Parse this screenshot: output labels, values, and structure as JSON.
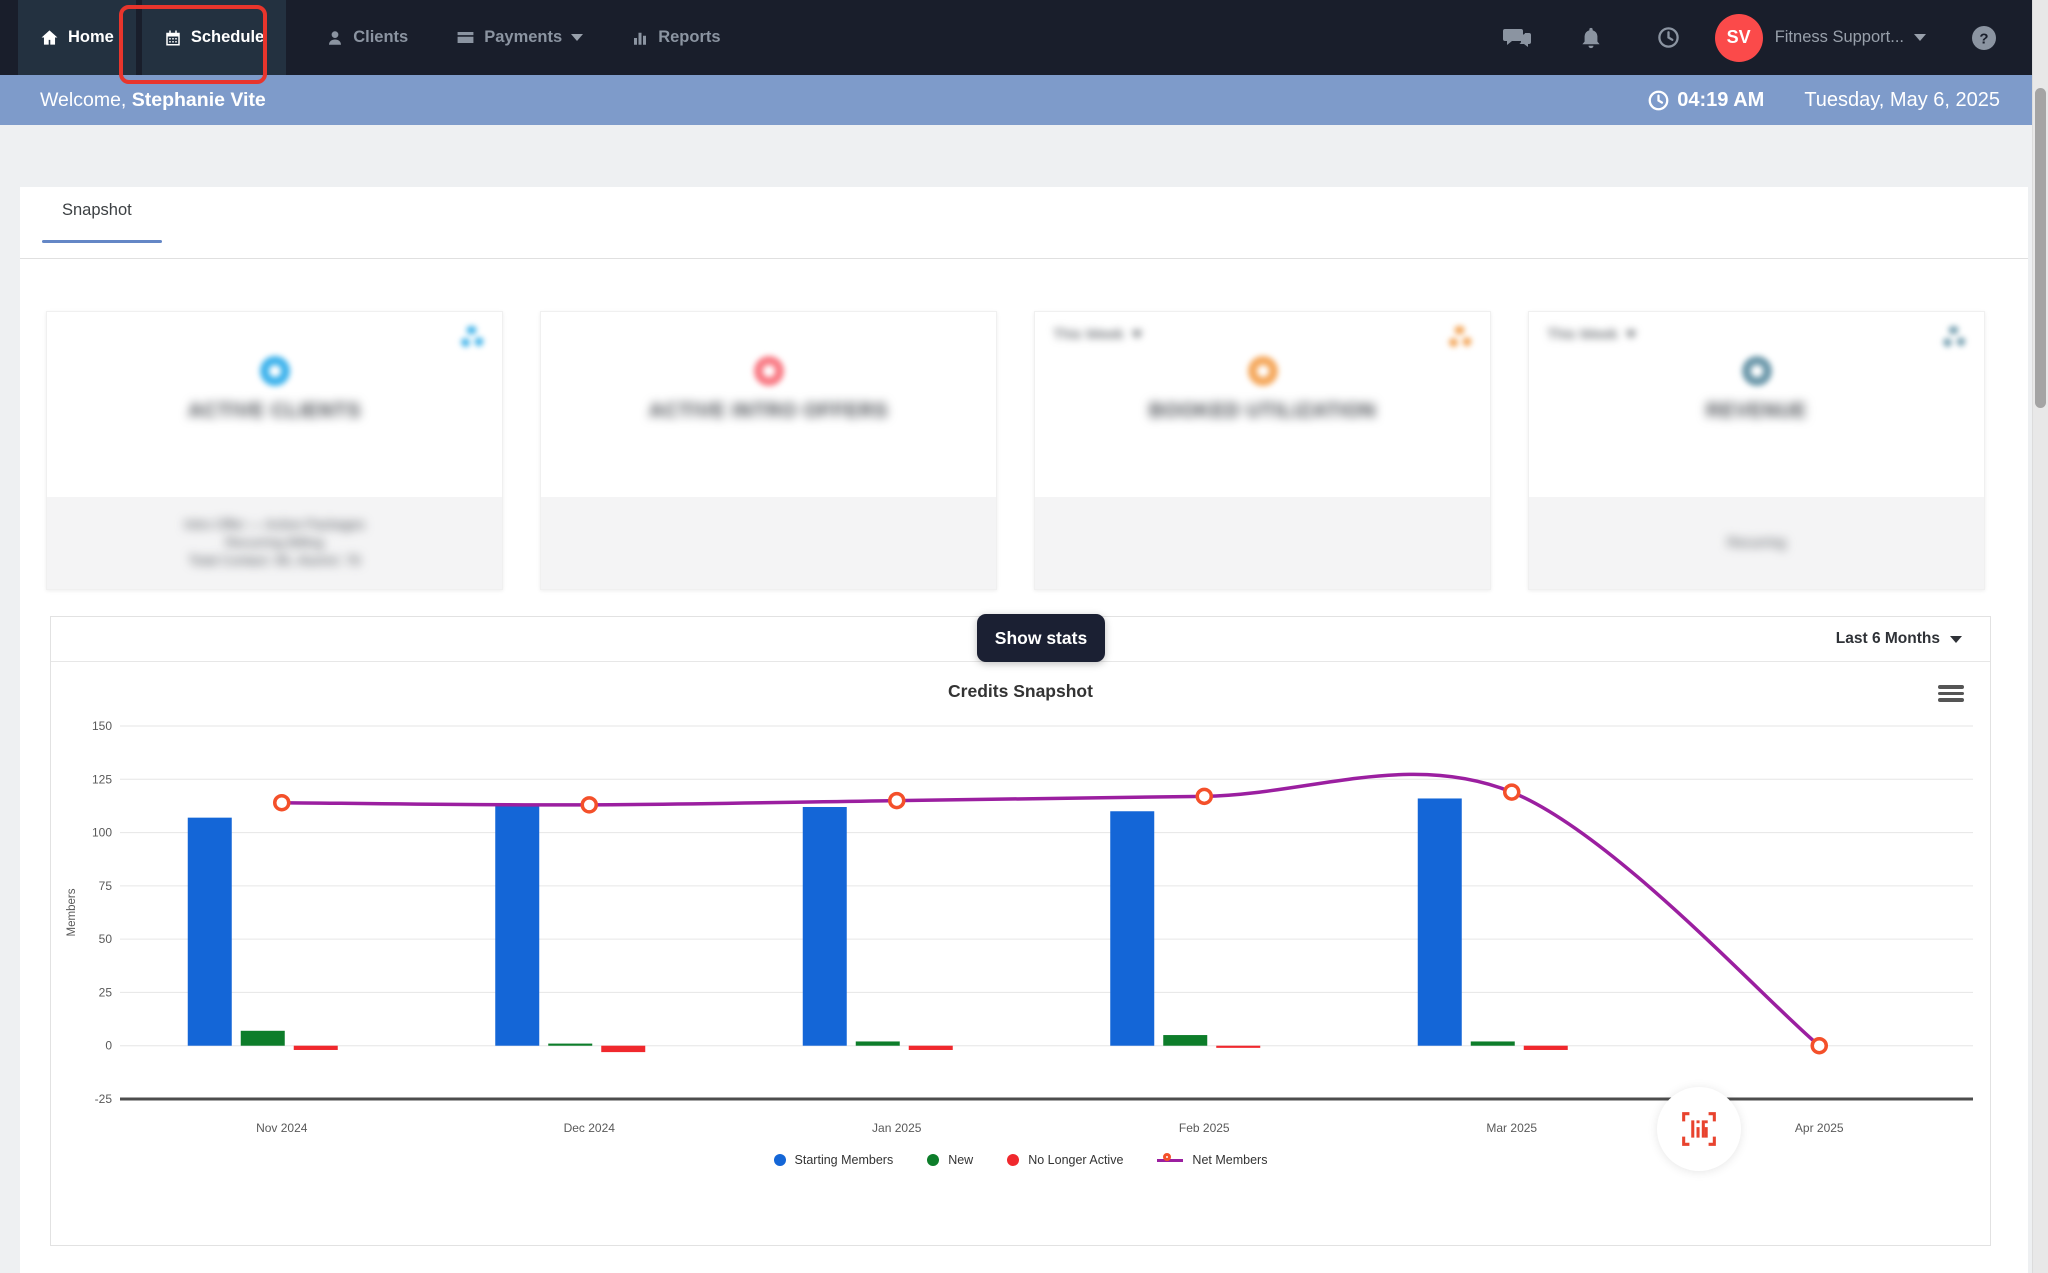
{
  "nav": {
    "items": [
      {
        "label": "Home"
      },
      {
        "label": "Schedule"
      },
      {
        "label": "Clients"
      },
      {
        "label": "Payments"
      },
      {
        "label": "Reports"
      }
    ],
    "avatar_initials": "SV",
    "brand": "Fitness Support...",
    "highlight_color": "#e8352c",
    "avatar_color": "#fb4a4a"
  },
  "welcome": {
    "prefix": "Welcome,",
    "user_name": "Stephanie Vite",
    "time": "04:19 AM",
    "date": "Tuesday, May 6, 2025",
    "bar_color": "#7e9bca"
  },
  "tabs": {
    "snapshot_label": "Snapshot"
  },
  "cards": [
    {
      "title": "ACTIVE CLIENTS",
      "period_label": "",
      "ring_color": "#3fb3ec",
      "gear_color": "#45b5ea",
      "has_gear": true,
      "footer_lines": [
        "Intro Offer — Active Packages",
        "Recurring Billing",
        "Total Contact: 96, Alumni: 76"
      ],
      "blurred": true
    },
    {
      "title": "ACTIVE INTRO OFFERS",
      "period_label": "",
      "ring_color": "#f97c86",
      "gear_color": "",
      "has_gear": false,
      "footer_lines": [],
      "blurred": true
    },
    {
      "title": "BOOKED UTILIZATION",
      "period_label": "This Week",
      "ring_color": "#f5a95e",
      "gear_color": "#f3a558",
      "has_gear": true,
      "footer_lines": [],
      "blurred": true
    },
    {
      "title": "REVENUE",
      "period_label": "This Week",
      "ring_color": "#6f9aac",
      "gear_color": "#7fa6b6",
      "has_gear": true,
      "footer_lines": [
        "Recurring"
      ],
      "blurred": true
    }
  ],
  "overlay": {
    "show_stats_label": "Show stats"
  },
  "chart_panel": {
    "range_label": "Last 6 Months"
  },
  "chart_data": {
    "type": "bar",
    "title": "Credits Snapshot",
    "ylabel": "Members",
    "xlabel": "",
    "ylim": [
      -25,
      150
    ],
    "ytick_step": 25,
    "grid": true,
    "legend_position": "bottom",
    "categories": [
      "Nov 2024",
      "Dec 2024",
      "Jan 2025",
      "Feb 2025",
      "Mar 2025",
      "Apr 2025"
    ],
    "bar_series": [
      {
        "name": "Starting Members",
        "color": "#1466d7",
        "values": [
          107,
          113,
          112,
          110,
          116,
          null
        ]
      },
      {
        "name": "New",
        "color": "#0d7d2a",
        "values": [
          7,
          1,
          2,
          5,
          2,
          null
        ]
      },
      {
        "name": "No Longer Active",
        "color": "#f0282d",
        "values": [
          -2,
          -3,
          -2,
          -1,
          -2,
          null
        ]
      }
    ],
    "line_series": {
      "name": "Net Members",
      "type": "spline",
      "line_color": "#9b1fa0",
      "marker_color": "#f4502a",
      "values": [
        114,
        113,
        115,
        117,
        119,
        0
      ]
    }
  }
}
